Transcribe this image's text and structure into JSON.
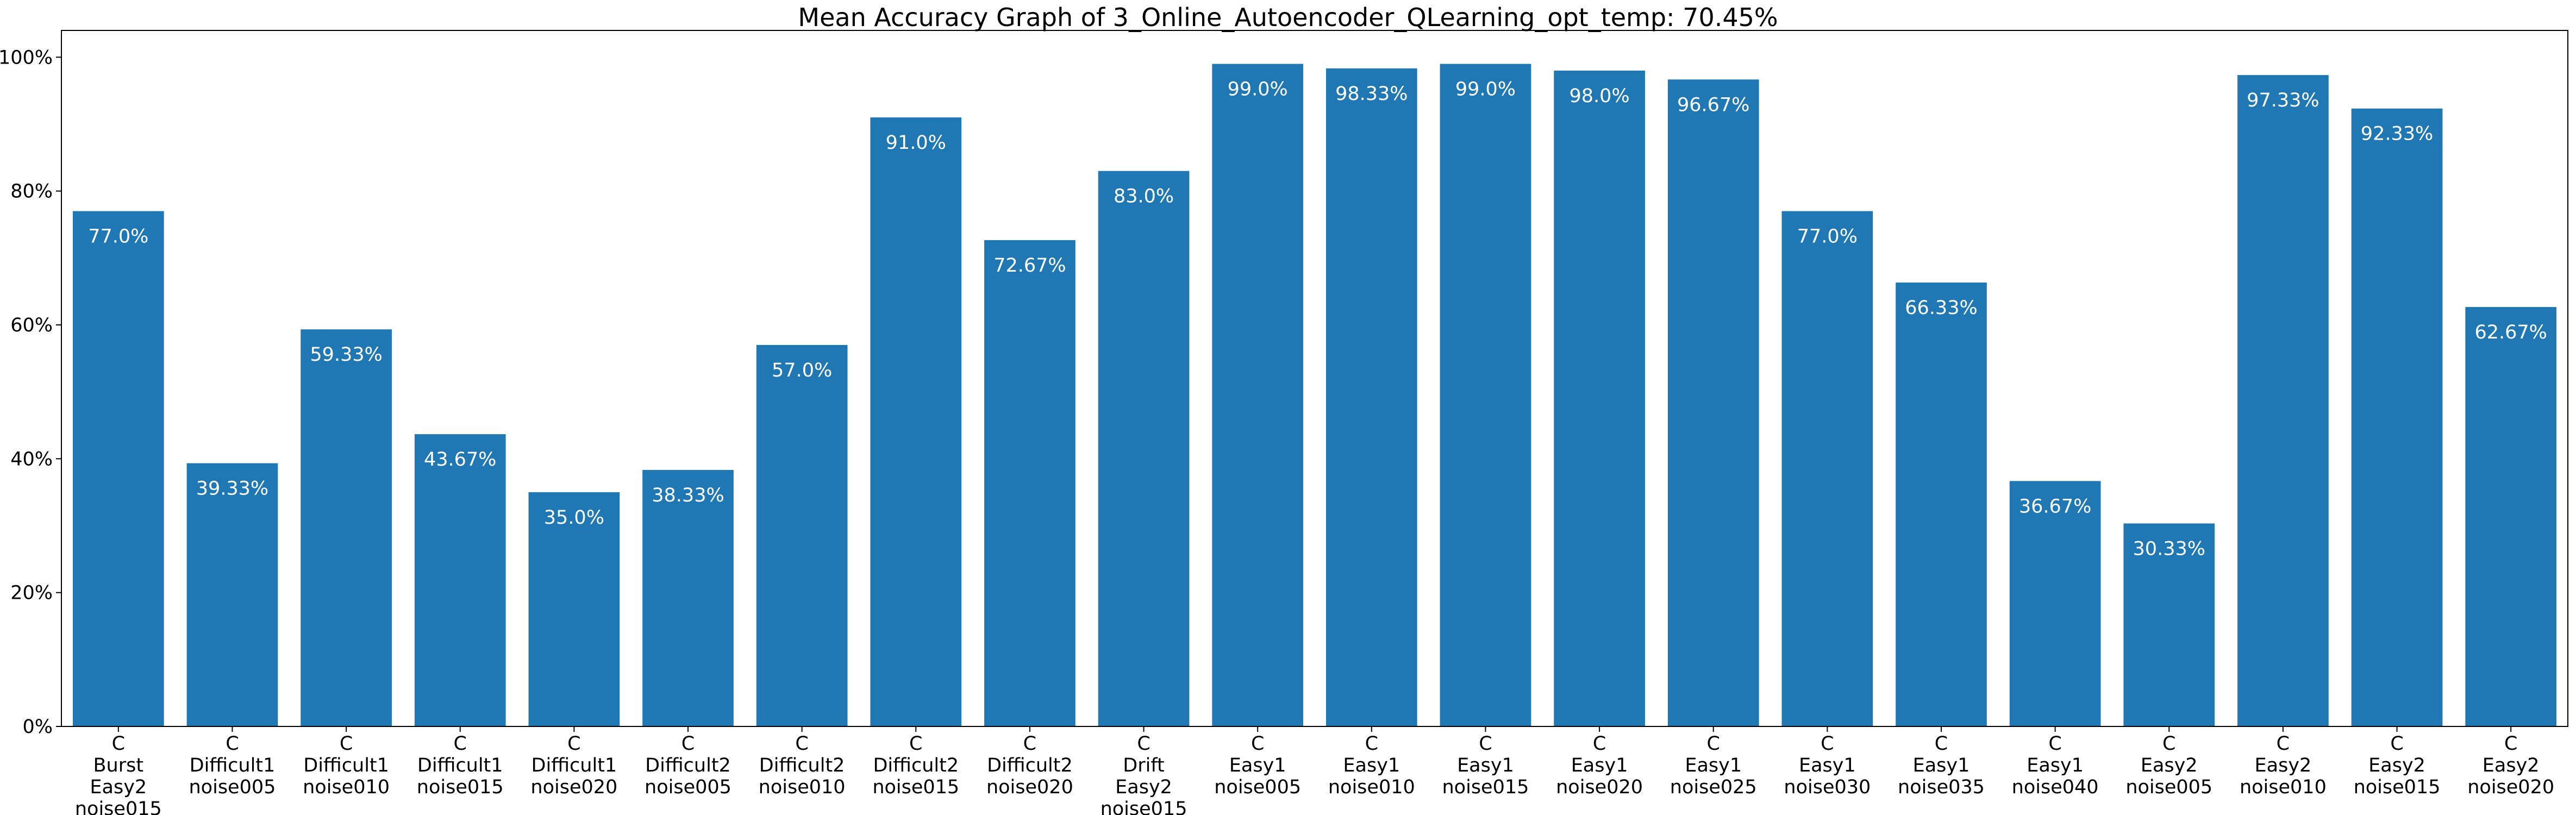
{
  "chart_data": {
    "type": "bar",
    "title": "Mean Accuracy Graph of 3_Online_Autoencoder_QLearning_opt_temp: 70.45%",
    "xlabel": "",
    "ylabel": "",
    "ylim": [
      0,
      104
    ],
    "y_ticks": [
      0,
      20,
      40,
      60,
      80,
      100
    ],
    "y_tick_labels": [
      "0%",
      "20%",
      "40%",
      "60%",
      "80%",
      "100%"
    ],
    "bar_color": "#1f77b4",
    "grid": false,
    "categories": [
      "C\nBurst\nEasy2\nnoise015",
      "C\nDifficult1\nnoise005",
      "C\nDifficult1\nnoise010",
      "C\nDifficult1\nnoise015",
      "C\nDifficult1\nnoise020",
      "C\nDifficult2\nnoise005",
      "C\nDifficult2\nnoise010",
      "C\nDifficult2\nnoise015",
      "C\nDifficult2\nnoise020",
      "C\nDrift\nEasy2\nnoise015",
      "C\nEasy1\nnoise005",
      "C\nEasy1\nnoise010",
      "C\nEasy1\nnoise015",
      "C\nEasy1\nnoise020",
      "C\nEasy1\nnoise025",
      "C\nEasy1\nnoise030",
      "C\nEasy1\nnoise035",
      "C\nEasy1\nnoise040",
      "C\nEasy2\nnoise005",
      "C\nEasy2\nnoise010",
      "C\nEasy2\nnoise015",
      "C\nEasy2\nnoise020"
    ],
    "values": [
      77.0,
      39.33,
      59.33,
      43.67,
      35.0,
      38.33,
      57.0,
      91.0,
      72.67,
      83.0,
      99.0,
      98.33,
      99.0,
      98.0,
      96.67,
      77.0,
      66.33,
      36.67,
      30.33,
      97.33,
      92.33,
      62.67
    ],
    "data_labels": [
      "77.0%",
      "39.33%",
      "59.33%",
      "43.67%",
      "35.0%",
      "38.33%",
      "57.0%",
      "91.0%",
      "72.67%",
      "83.0%",
      "99.0%",
      "98.33%",
      "99.0%",
      "98.0%",
      "96.67%",
      "77.0%",
      "66.33%",
      "36.67%",
      "30.33%",
      "97.33%",
      "92.33%",
      "62.67%"
    ]
  }
}
